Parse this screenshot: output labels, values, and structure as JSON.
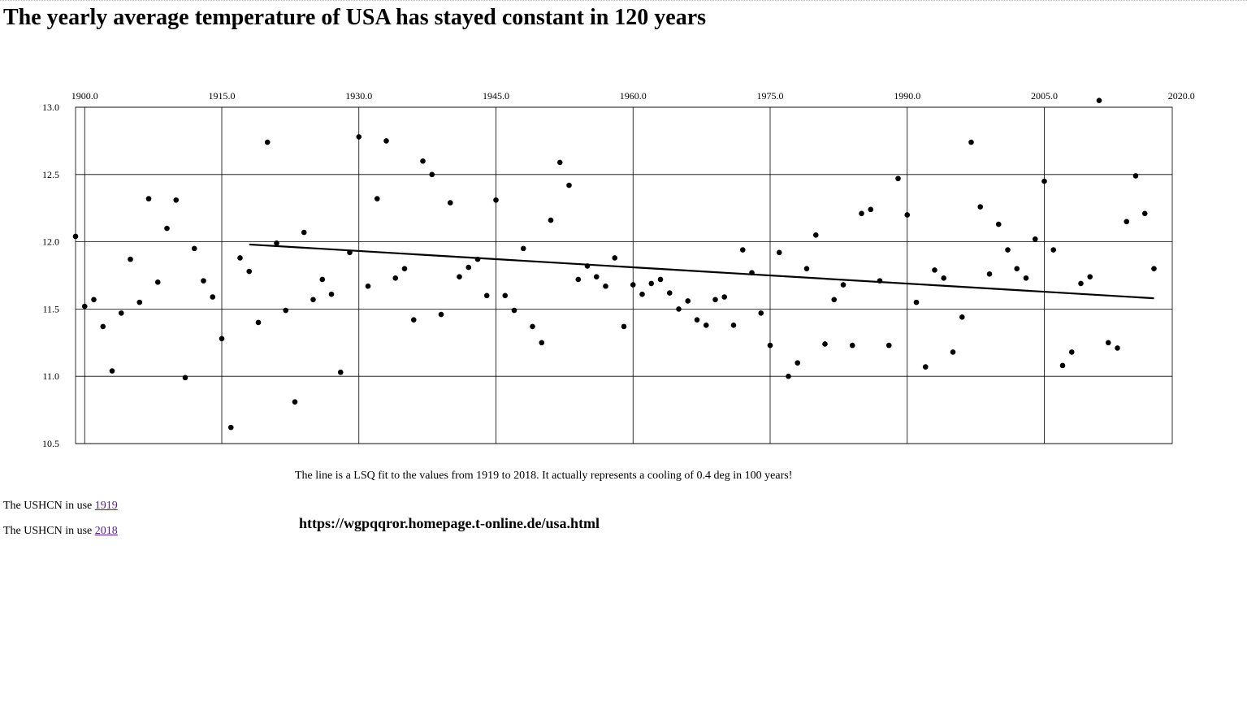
{
  "page": {
    "title": "The yearly average temperature of USA has stayed constant in 120 years",
    "note": "The line is a LSQ fit to the values from 1919 to 2018. It actually represents a cooling of 0.4 deg in 100 years!",
    "links": [
      {
        "prefix": "The USHCN in use ",
        "link": "1919"
      },
      {
        "prefix": "The USHCN in use ",
        "link": "2018"
      }
    ],
    "url": "https://wgpqqror.homepage.t-online.de/usa.html"
  },
  "chart_data": {
    "type": "scatter",
    "title": "",
    "xlabel": "",
    "ylabel": "",
    "xlim": [
      1899,
      2019
    ],
    "ylim": [
      10.5,
      13.0
    ],
    "grid": true,
    "x_ticks": [
      1900,
      1915,
      1930,
      1945,
      1960,
      1975,
      1990,
      2005,
      2020
    ],
    "x_tick_labels": [
      "1900.0",
      "1915.0",
      "1930.0",
      "1945.0",
      "1960.0",
      "1975.0",
      "1990.0",
      "2005.0",
      "2020.0"
    ],
    "y_ticks": [
      10.5,
      11.0,
      11.5,
      12.0,
      12.5,
      13.0
    ],
    "y_tick_labels": [
      "10.5",
      "11.0",
      "11.5",
      "12.0",
      "12.5",
      "13.0"
    ],
    "series": [
      {
        "values": [
          [
            1899,
            12.04
          ],
          [
            1900,
            11.52
          ],
          [
            1901,
            11.57
          ],
          [
            1902,
            11.37
          ],
          [
            1903,
            11.04
          ],
          [
            1904,
            11.47
          ],
          [
            1905,
            11.87
          ],
          [
            1906,
            11.55
          ],
          [
            1907,
            12.32
          ],
          [
            1908,
            11.7
          ],
          [
            1909,
            12.1
          ],
          [
            1910,
            12.31
          ],
          [
            1911,
            10.99
          ],
          [
            1912,
            11.95
          ],
          [
            1913,
            11.71
          ],
          [
            1914,
            11.59
          ],
          [
            1915,
            11.28
          ],
          [
            1916,
            10.62
          ],
          [
            1917,
            11.88
          ],
          [
            1918,
            11.78
          ],
          [
            1919,
            11.4
          ],
          [
            1920,
            12.74
          ],
          [
            1921,
            11.99
          ],
          [
            1922,
            11.49
          ],
          [
            1923,
            10.81
          ],
          [
            1924,
            12.07
          ],
          [
            1925,
            11.57
          ],
          [
            1926,
            11.72
          ],
          [
            1927,
            11.61
          ],
          [
            1928,
            11.03
          ],
          [
            1929,
            11.92
          ],
          [
            1930,
            12.78
          ],
          [
            1931,
            11.67
          ],
          [
            1932,
            12.32
          ],
          [
            1933,
            12.75
          ],
          [
            1934,
            11.73
          ],
          [
            1935,
            11.8
          ],
          [
            1936,
            11.42
          ],
          [
            1937,
            12.6
          ],
          [
            1938,
            12.5
          ],
          [
            1939,
            11.46
          ],
          [
            1940,
            12.29
          ],
          [
            1941,
            11.74
          ],
          [
            1942,
            11.81
          ],
          [
            1943,
            11.87
          ],
          [
            1944,
            11.6
          ],
          [
            1945,
            12.31
          ],
          [
            1946,
            11.6
          ],
          [
            1947,
            11.49
          ],
          [
            1948,
            11.95
          ],
          [
            1949,
            11.37
          ],
          [
            1950,
            11.25
          ],
          [
            1951,
            12.16
          ],
          [
            1952,
            12.59
          ],
          [
            1953,
            12.42
          ],
          [
            1954,
            11.72
          ],
          [
            1955,
            11.82
          ],
          [
            1956,
            11.74
          ],
          [
            1957,
            11.67
          ],
          [
            1958,
            11.88
          ],
          [
            1959,
            11.37
          ],
          [
            1960,
            11.68
          ],
          [
            1961,
            11.61
          ],
          [
            1962,
            11.69
          ],
          [
            1963,
            11.72
          ],
          [
            1964,
            11.62
          ],
          [
            1965,
            11.5
          ],
          [
            1966,
            11.56
          ],
          [
            1967,
            11.42
          ],
          [
            1968,
            11.38
          ],
          [
            1969,
            11.57
          ],
          [
            1970,
            11.59
          ],
          [
            1971,
            11.38
          ],
          [
            1972,
            11.94
          ],
          [
            1973,
            11.77
          ],
          [
            1974,
            11.47
          ],
          [
            1975,
            11.23
          ],
          [
            1976,
            11.92
          ],
          [
            1977,
            11.0
          ],
          [
            1978,
            11.1
          ],
          [
            1979,
            11.8
          ],
          [
            1980,
            12.05
          ],
          [
            1981,
            11.24
          ],
          [
            1982,
            11.57
          ],
          [
            1983,
            11.68
          ],
          [
            1984,
            11.23
          ],
          [
            1985,
            12.21
          ],
          [
            1986,
            12.24
          ],
          [
            1987,
            11.71
          ],
          [
            1988,
            11.23
          ],
          [
            1989,
            12.47
          ],
          [
            1990,
            12.2
          ],
          [
            1991,
            11.55
          ],
          [
            1992,
            11.07
          ],
          [
            1993,
            11.79
          ],
          [
            1994,
            11.73
          ],
          [
            1995,
            11.18
          ],
          [
            1996,
            11.44
          ],
          [
            1997,
            12.74
          ],
          [
            1998,
            12.26
          ],
          [
            1999,
            11.76
          ],
          [
            2000,
            12.13
          ],
          [
            2001,
            11.94
          ],
          [
            2002,
            11.8
          ],
          [
            2003,
            11.73
          ],
          [
            2004,
            12.02
          ],
          [
            2005,
            12.45
          ],
          [
            2006,
            11.94
          ],
          [
            2007,
            11.08
          ],
          [
            2008,
            11.18
          ],
          [
            2009,
            11.69
          ],
          [
            2010,
            11.74
          ],
          [
            2011,
            13.05
          ],
          [
            2012,
            11.25
          ],
          [
            2013,
            11.21
          ],
          [
            2014,
            12.15
          ],
          [
            2015,
            12.49
          ],
          [
            2016,
            12.21
          ],
          [
            2017,
            11.8
          ]
        ]
      }
    ],
    "fit_line": {
      "x": [
        1918,
        2017
      ],
      "y": [
        11.98,
        11.58
      ]
    }
  }
}
